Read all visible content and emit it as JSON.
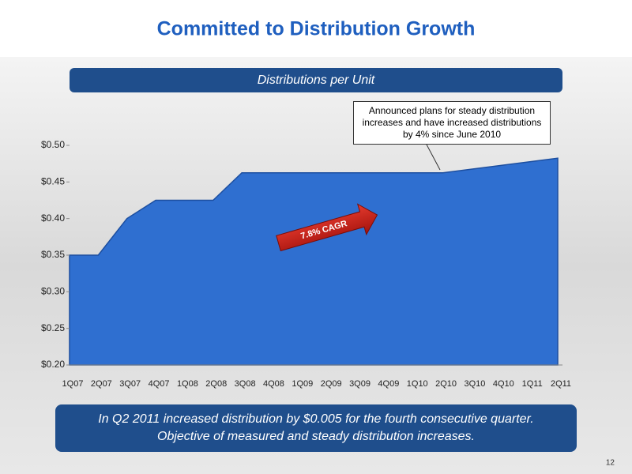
{
  "header": {
    "title": "Committed to Distribution Growth"
  },
  "chart_data": {
    "type": "area",
    "subtitle": "Distributions per Unit",
    "categories": [
      "1Q07",
      "2Q07",
      "3Q07",
      "4Q07",
      "1Q08",
      "2Q08",
      "3Q08",
      "4Q08",
      "1Q09",
      "2Q09",
      "3Q09",
      "4Q09",
      "1Q10",
      "2Q10",
      "3Q10",
      "4Q10",
      "1Q11",
      "2Q11"
    ],
    "values": [
      0.35,
      0.35,
      0.4,
      0.425,
      0.425,
      0.425,
      0.4625,
      0.4625,
      0.4625,
      0.4625,
      0.4625,
      0.4625,
      0.4625,
      0.4625,
      0.4675,
      0.4725,
      0.4775,
      0.4825
    ],
    "color": "#2f6fd0",
    "ylim": [
      0.2,
      0.5
    ],
    "yticks": [
      {
        "value": 0.2,
        "label": "$0.20"
      },
      {
        "value": 0.25,
        "label": "$0.25"
      },
      {
        "value": 0.3,
        "label": "$0.30"
      },
      {
        "value": 0.35,
        "label": "$0.35"
      },
      {
        "value": 0.4,
        "label": "$0.40"
      },
      {
        "value": 0.45,
        "label": "$0.45"
      },
      {
        "value": 0.5,
        "label": "$0.50"
      }
    ],
    "annotations": [
      "Announced plans for steady distribution increases and have increased distributions by 4% since June 2010",
      "7.8% CAGR"
    ]
  },
  "footer": {
    "lines": [
      "In Q2 2011 increased distribution by $0.005 for the fourth consecutive quarter.",
      "Objective of measured and steady distribution increases."
    ]
  },
  "page_number": "12"
}
